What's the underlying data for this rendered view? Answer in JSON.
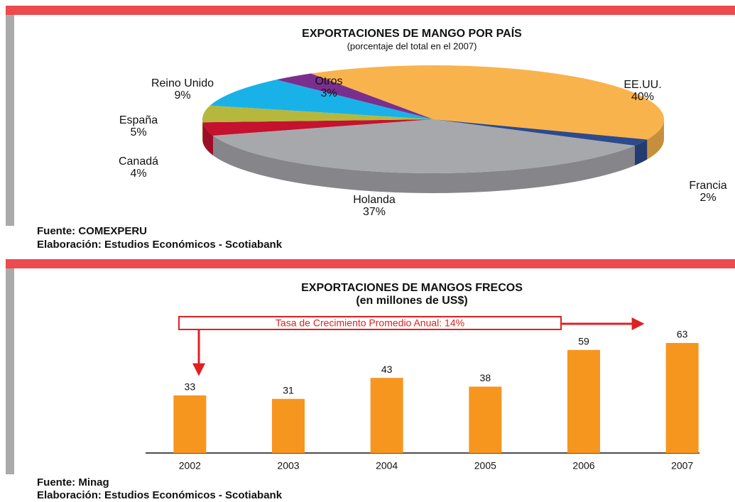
{
  "chart_data": [
    {
      "type": "pie",
      "title": "EXPORTACIONES DE MANGO POR PAÍS",
      "subtitle": "(porcentaje del total en el 2007)",
      "categories": [
        "EE.UU.",
        "Francia",
        "Holanda",
        "Canadá",
        "España",
        "Reino Unido",
        "Otros"
      ],
      "values": [
        40,
        2,
        37,
        4,
        5,
        9,
        3
      ],
      "value_labels": [
        "40%",
        "2%",
        "37%",
        "4%",
        "5%",
        "9%",
        "3%"
      ],
      "colors": [
        "#f9b34c",
        "#2d4a8c",
        "#a7a8ac",
        "#c4122f",
        "#b5b83c",
        "#19b2e8",
        "#7a2f8f"
      ],
      "source": "Fuente: COMEXPERU",
      "credit": "Elaboración: Estudios Económicos - Scotiabank"
    },
    {
      "type": "bar",
      "title": "EXPORTACIONES DE MANGOS FRECOS",
      "subtitle": "(en millones de US$)",
      "categories": [
        "2002",
        "2003",
        "2004",
        "2005",
        "2006",
        "2007"
      ],
      "values": [
        33,
        31,
        43,
        38,
        59,
        63
      ],
      "color": "#f7961f",
      "annotation": "Tasa de Crecimiento Promedio Anual:  14%",
      "source": "Fuente: Minag",
      "credit": "Elaboración: Estudios Económicos - Scotiabank"
    }
  ]
}
